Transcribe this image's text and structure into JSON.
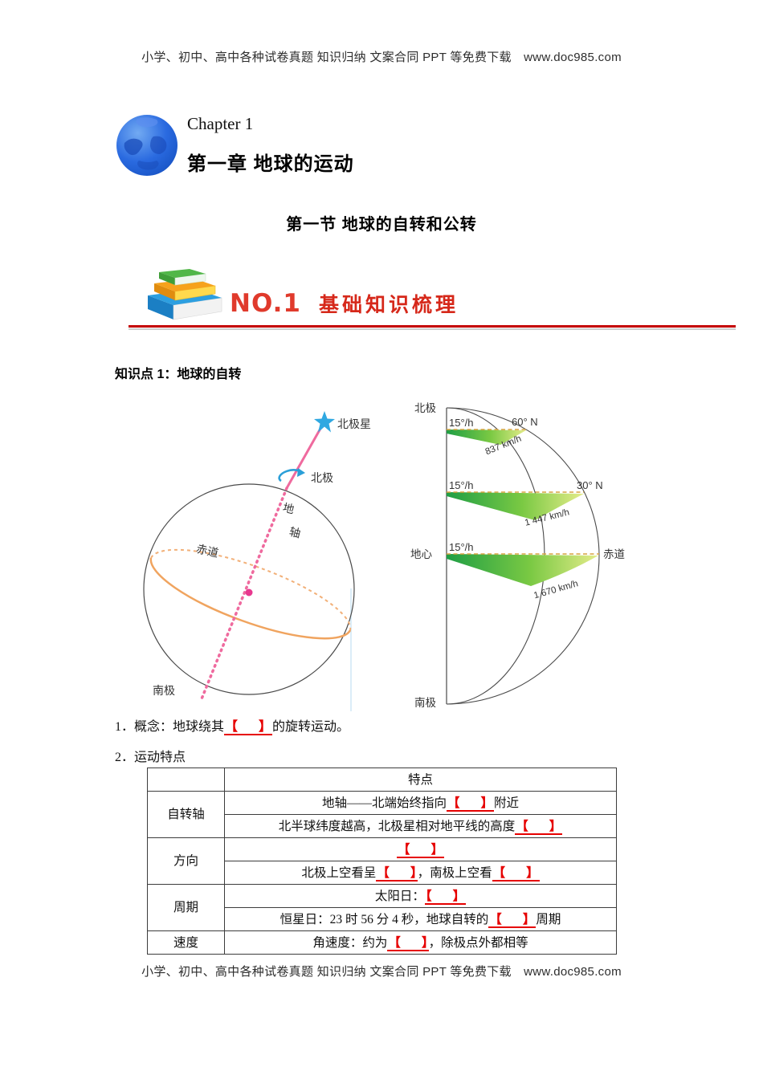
{
  "page": {
    "header_text": "小学、初中、高中各种试卷真题 知识归纳 文案合同 PPT 等免费下载　www.doc985.com",
    "footer_text": "小学、初中、高中各种试卷真题 知识归纳 文案合同 PPT 等免费下载　www.doc985.com",
    "accent_red": "#c40000",
    "blank_red": "#e60000"
  },
  "chapter": {
    "eyebrow": "Chapter 1",
    "title": "第一章  地球的运动",
    "section": "第一节  地球的自转和公转"
  },
  "banner": {
    "number": "NO.1",
    "title": "基础知识梳理"
  },
  "knowledge": {
    "heading": "知识点 1：地球的自转"
  },
  "fig_left": {
    "north_star": "北极星",
    "north_pole": "北极",
    "axis_char_1": "地",
    "axis_char_2": "轴",
    "equator": "赤道",
    "south_pole": "南极",
    "axis_color": "#ef6a9e",
    "equator_color": "#f0a45f",
    "star_color": "#2fa8e1"
  },
  "fig_right": {
    "north_pole": "北极",
    "south_pole": "南极",
    "earth_center": "地心",
    "equator": "赤道",
    "lat_60": "60° N",
    "lat_30": "30° N",
    "angular_speed": "15°/h",
    "speed_60": "837 km/h",
    "speed_30": "1 447 km/h",
    "speed_eq": "1 670 km/h"
  },
  "blank": {
    "open": "【",
    "close": "】"
  },
  "concept": {
    "item1": [
      {
        "t": "1．概念：地球绕其"
      },
      {
        "blank": true
      },
      {
        "t": "的旋转运动。"
      }
    ],
    "item2": "2．运动特点"
  },
  "table": {
    "feature_header": "特点",
    "groups": [
      {
        "label": "自转轴",
        "rows": [
          [
            {
              "t": "地轴——北端始终指向"
            },
            {
              "blank": true
            },
            {
              "t": "附近"
            }
          ],
          [
            {
              "t": "北半球纬度越高，北极星相对地平线的高度"
            },
            {
              "blank": true
            }
          ]
        ]
      },
      {
        "label": "方向",
        "rows": [
          [
            {
              "blank": true
            }
          ],
          [
            {
              "t": "北极上空看呈"
            },
            {
              "blank": true
            },
            {
              "t": "，南极上空看"
            },
            {
              "blank": true
            }
          ]
        ]
      },
      {
        "label": "周期",
        "rows": [
          [
            {
              "t": "太阳日："
            },
            {
              "blank": true
            }
          ],
          [
            {
              "t": "恒星日：23 时 56 分 4 秒，地球自转的"
            },
            {
              "blank": true
            },
            {
              "t": "周期"
            }
          ]
        ]
      },
      {
        "label": "速度",
        "rows": [
          [
            {
              "t": "角速度：约为"
            },
            {
              "blank": true
            },
            {
              "t": "，除极点外都相等"
            }
          ]
        ]
      }
    ]
  }
}
